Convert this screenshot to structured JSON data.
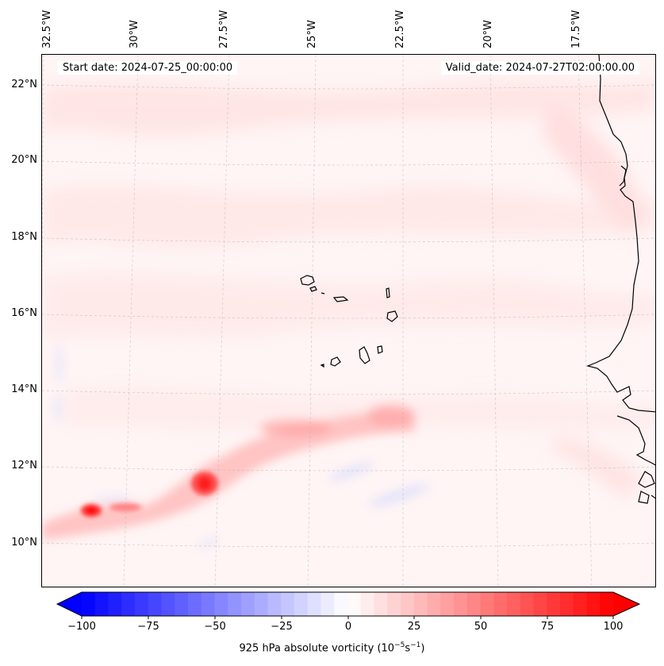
{
  "map": {
    "start_date": "Start date: 2024-07-25_00:00:00",
    "valid_date": "Valid_date: 2024-07-27T02:00:00.00",
    "lon_labels": [
      "32.5°W",
      "30°W",
      "27.5°W",
      "25°W",
      "22.5°W",
      "20°W",
      "17.5°W"
    ],
    "lat_labels": [
      "22°N",
      "20°N",
      "18°N",
      "16°N",
      "14°N",
      "12°N",
      "10°N"
    ],
    "field": "925 hPa absolute vorticity",
    "colors": {
      "ocean_tint": "#fff4f4",
      "positive": "#ff0000",
      "negative": "#0000ff",
      "coast": "#000000"
    }
  },
  "colorbar": {
    "ticks": [
      "−100",
      "−75",
      "−50",
      "−25",
      "0",
      "25",
      "50",
      "75",
      "100"
    ],
    "label_main": "925 hPa absolute vorticity (10",
    "label_exp1": "−5",
    "label_mid": "s",
    "label_exp2": "−1",
    "label_end": ")",
    "range": [
      -100,
      100
    ],
    "levels": 40
  }
}
